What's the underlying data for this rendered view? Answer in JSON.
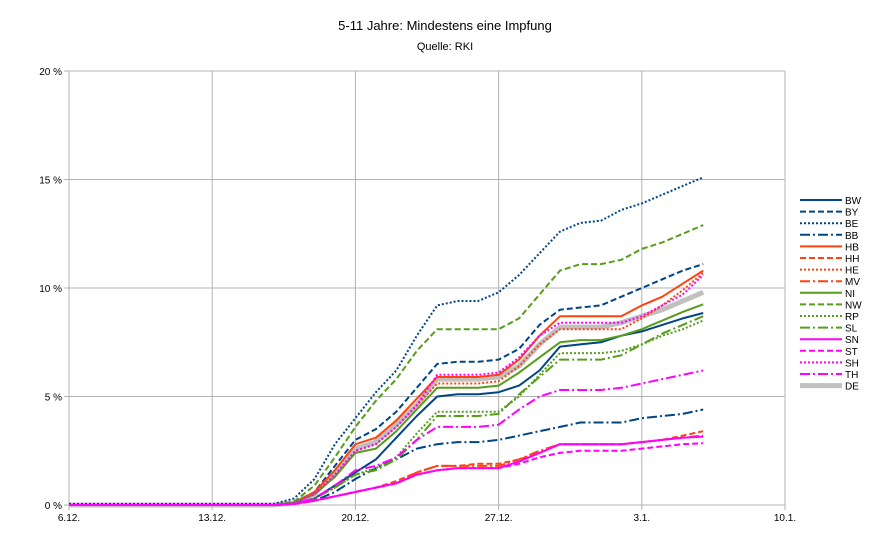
{
  "chart_data": {
    "type": "line",
    "title": "5-11 Jahre: Mindestens eine Impfung",
    "subtitle": "Quelle: RKI",
    "xlabel": "",
    "ylabel": "",
    "x_ticks": [
      "6.12.",
      "13.12.",
      "20.12.",
      "27.12.",
      "3.1.",
      "10.1."
    ],
    "x_range_days": [
      0,
      35
    ],
    "x_values": [
      0,
      1,
      2,
      3,
      4,
      5,
      6,
      7,
      8,
      9,
      10,
      11,
      12,
      13,
      14,
      15,
      16,
      17,
      18,
      19,
      20,
      21,
      22,
      23,
      24,
      25,
      26,
      27,
      28,
      29,
      30,
      31
    ],
    "y_ticks": [
      "0 %",
      "5 %",
      "10 %",
      "15 %",
      "20 %"
    ],
    "ylim": [
      0,
      20
    ],
    "grid": true,
    "legend_position": "right",
    "series": [
      {
        "name": "BW",
        "color": "#004586",
        "dash": "solid",
        "width": 2,
        "values": [
          0,
          0,
          0,
          0,
          0,
          0,
          0,
          0,
          0,
          0,
          0,
          0.05,
          0.3,
          0.9,
          1.5,
          2.1,
          3.1,
          4.1,
          5.0,
          5.1,
          5.1,
          5.2,
          5.5,
          6.2,
          7.3,
          7.4,
          7.5,
          7.8,
          8.0,
          8.3,
          8.6,
          8.85
        ]
      },
      {
        "name": "BY",
        "color": "#004586",
        "dash": "6,3",
        "width": 2,
        "values": [
          0,
          0,
          0,
          0,
          0,
          0,
          0,
          0,
          0,
          0,
          0,
          0.1,
          0.6,
          1.8,
          3.0,
          3.5,
          4.3,
          5.4,
          6.5,
          6.6,
          6.6,
          6.7,
          7.2,
          8.3,
          9.0,
          9.1,
          9.2,
          9.6,
          10.0,
          10.4,
          10.8,
          11.1
        ]
      },
      {
        "name": "BE",
        "color": "#004586",
        "dash": "2,2",
        "width": 2,
        "values": [
          0.05,
          0.05,
          0.05,
          0.05,
          0.05,
          0.05,
          0.05,
          0.05,
          0.05,
          0.05,
          0.05,
          0.3,
          1.2,
          2.8,
          4.0,
          5.2,
          6.2,
          7.8,
          9.2,
          9.4,
          9.4,
          9.8,
          10.6,
          11.6,
          12.6,
          13.0,
          13.1,
          13.6,
          13.9,
          14.3,
          14.7,
          15.1
        ]
      },
      {
        "name": "BB",
        "color": "#004586",
        "dash": "10,3,2,3",
        "width": 2,
        "values": [
          0,
          0,
          0,
          0,
          0,
          0,
          0,
          0,
          0,
          0,
          0,
          0.05,
          0.2,
          0.6,
          1.2,
          1.7,
          2.1,
          2.6,
          2.8,
          2.9,
          2.9,
          3.0,
          3.2,
          3.4,
          3.6,
          3.8,
          3.8,
          3.8,
          4.0,
          4.1,
          4.2,
          4.4
        ]
      },
      {
        "name": "HB",
        "color": "#ff420e",
        "dash": "solid",
        "width": 2,
        "values": [
          0,
          0,
          0,
          0,
          0,
          0,
          0,
          0,
          0,
          0,
          0,
          0.1,
          0.6,
          1.6,
          2.8,
          3.1,
          3.9,
          4.9,
          5.9,
          5.9,
          5.9,
          6.0,
          6.7,
          7.8,
          8.7,
          8.7,
          8.7,
          8.7,
          9.2,
          9.6,
          10.2,
          10.8
        ]
      },
      {
        "name": "HH",
        "color": "#ff420e",
        "dash": "6,3",
        "width": 2,
        "values": [
          0,
          0,
          0,
          0,
          0,
          0,
          0,
          0,
          0,
          0,
          0,
          0.05,
          0.2,
          0.4,
          0.6,
          0.8,
          1.1,
          1.5,
          1.8,
          1.8,
          1.9,
          1.9,
          2.1,
          2.4,
          2.8,
          2.8,
          2.8,
          2.8,
          2.9,
          3.0,
          3.2,
          3.4
        ]
      },
      {
        "name": "HE",
        "color": "#ff420e",
        "dash": "2,2",
        "width": 2,
        "values": [
          0,
          0,
          0,
          0,
          0,
          0,
          0,
          0,
          0,
          0,
          0,
          0.1,
          0.5,
          1.4,
          2.5,
          2.8,
          3.6,
          4.6,
          5.6,
          5.6,
          5.6,
          5.7,
          6.4,
          7.4,
          8.1,
          8.1,
          8.1,
          8.1,
          8.6,
          9.2,
          9.9,
          10.7
        ]
      },
      {
        "name": "MV",
        "color": "#ff420e",
        "dash": "10,3,2,3",
        "width": 2,
        "values": [
          0,
          0,
          0,
          0,
          0,
          0,
          0,
          0,
          0,
          0,
          0,
          0.05,
          0.2,
          0.4,
          0.6,
          0.8,
          1.0,
          1.5,
          1.8,
          1.8,
          1.8,
          1.8,
          2.1,
          2.5,
          2.8,
          2.8,
          2.8,
          2.8,
          2.9,
          3.0,
          3.1,
          3.2
        ]
      },
      {
        "name": "NI",
        "color": "#579d1c",
        "dash": "solid",
        "width": 2,
        "values": [
          0,
          0,
          0,
          0,
          0,
          0,
          0,
          0,
          0,
          0,
          0,
          0.1,
          0.5,
          1.3,
          2.4,
          2.6,
          3.4,
          4.4,
          5.4,
          5.4,
          5.4,
          5.5,
          6.1,
          6.8,
          7.5,
          7.6,
          7.6,
          7.8,
          8.1,
          8.5,
          8.9,
          9.25
        ]
      },
      {
        "name": "NW",
        "color": "#579d1c",
        "dash": "6,3",
        "width": 2,
        "values": [
          0,
          0,
          0,
          0,
          0,
          0,
          0,
          0,
          0,
          0,
          0,
          0.15,
          0.9,
          2.2,
          3.6,
          4.8,
          5.8,
          7.1,
          8.1,
          8.1,
          8.1,
          8.1,
          8.6,
          9.7,
          10.8,
          11.1,
          11.1,
          11.3,
          11.8,
          12.1,
          12.5,
          12.9
        ]
      },
      {
        "name": "RP",
        "color": "#579d1c",
        "dash": "2,2",
        "width": 2,
        "values": [
          0,
          0,
          0,
          0,
          0,
          0,
          0,
          0,
          0,
          0,
          0,
          0.05,
          0.3,
          0.8,
          1.4,
          1.7,
          2.2,
          3.3,
          4.3,
          4.3,
          4.3,
          4.3,
          5.0,
          6.0,
          7.0,
          7.0,
          7.0,
          7.1,
          7.4,
          7.8,
          8.1,
          8.5
        ]
      },
      {
        "name": "SL",
        "color": "#579d1c",
        "dash": "10,3,2,3",
        "width": 2,
        "values": [
          0,
          0,
          0,
          0,
          0,
          0,
          0,
          0,
          0,
          0,
          0,
          0.05,
          0.3,
          0.8,
          1.4,
          1.6,
          2.1,
          3.0,
          4.1,
          4.1,
          4.1,
          4.2,
          5.1,
          5.9,
          6.7,
          6.7,
          6.7,
          6.9,
          7.4,
          7.9,
          8.3,
          8.7
        ]
      },
      {
        "name": "SN",
        "color": "#ff00ff",
        "dash": "solid",
        "width": 2,
        "values": [
          0,
          0,
          0,
          0,
          0,
          0,
          0,
          0,
          0,
          0,
          0,
          0.05,
          0.2,
          0.4,
          0.6,
          0.8,
          1.0,
          1.4,
          1.6,
          1.7,
          1.7,
          1.7,
          2.0,
          2.4,
          2.8,
          2.8,
          2.8,
          2.8,
          2.9,
          3.0,
          3.1,
          3.15
        ]
      },
      {
        "name": "ST",
        "color": "#ff00ff",
        "dash": "6,3",
        "width": 2,
        "values": [
          0,
          0,
          0,
          0,
          0,
          0,
          0,
          0,
          0,
          0,
          0,
          0.05,
          0.2,
          0.4,
          0.6,
          0.8,
          1.0,
          1.4,
          1.6,
          1.7,
          1.7,
          1.7,
          1.9,
          2.2,
          2.4,
          2.5,
          2.5,
          2.5,
          2.6,
          2.7,
          2.8,
          2.85
        ]
      },
      {
        "name": "SH",
        "color": "#ff00ff",
        "dash": "2,2",
        "width": 2,
        "values": [
          0,
          0,
          0,
          0,
          0,
          0,
          0,
          0,
          0,
          0,
          0,
          0.1,
          0.5,
          1.4,
          2.5,
          2.8,
          3.6,
          4.6,
          6.0,
          6.0,
          6.0,
          6.1,
          6.8,
          7.8,
          8.4,
          8.4,
          8.4,
          8.4,
          8.7,
          9.2,
          9.7,
          10.6
        ]
      },
      {
        "name": "TH",
        "color": "#ff00ff",
        "dash": "10,3,2,3",
        "width": 2,
        "values": [
          0,
          0,
          0,
          0,
          0,
          0,
          0,
          0,
          0,
          0,
          0,
          0.05,
          0.3,
          0.9,
          1.6,
          1.8,
          2.2,
          3.0,
          3.6,
          3.6,
          3.6,
          3.7,
          4.4,
          5.0,
          5.3,
          5.3,
          5.3,
          5.4,
          5.6,
          5.8,
          6.0,
          6.2
        ]
      },
      {
        "name": "DE",
        "color": "#c0c0c0",
        "dash": "solid",
        "width": 5,
        "values": [
          0,
          0,
          0,
          0,
          0,
          0,
          0,
          0,
          0,
          0,
          0,
          0.1,
          0.5,
          1.5,
          2.6,
          2.9,
          3.7,
          4.6,
          5.8,
          5.8,
          5.8,
          5.9,
          6.4,
          7.4,
          8.2,
          8.2,
          8.2,
          8.4,
          8.7,
          9.0,
          9.4,
          9.8
        ]
      }
    ]
  }
}
